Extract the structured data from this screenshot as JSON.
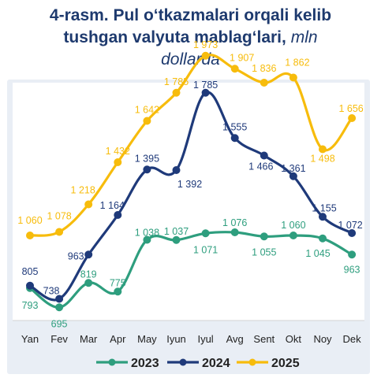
{
  "title": {
    "line1": "4-rasm. Pul o‘tkazmalari orqali kelib",
    "line2_bold": "tushgan valyuta mablag‘lari,",
    "line2_italic": "mln",
    "line3": "dollarda"
  },
  "chart_data": {
    "type": "line",
    "categories": [
      "Yan",
      "Fev",
      "Mar",
      "Apr",
      "May",
      "Iyun",
      "Iyul",
      "Avg",
      "Sent",
      "Okt",
      "Noy",
      "Dek"
    ],
    "series": [
      {
        "name": "2023",
        "color": "#2e9e7e",
        "values": [
          793,
          695,
          819,
          775,
          1038,
          1037,
          1071,
          1076,
          1055,
          1060,
          1045,
          963
        ],
        "labels": [
          "793",
          "695",
          "819",
          "775",
          "1 038",
          "1 037",
          "1 071",
          "1 076",
          "1 055",
          "1 060",
          "1 045",
          "963"
        ]
      },
      {
        "name": "2024",
        "color": "#1f3a7a",
        "values": [
          805,
          738,
          963,
          1164,
          1395,
          1392,
          1785,
          1555,
          1466,
          1361,
          1155,
          1072
        ],
        "labels": [
          "805",
          "738",
          "963",
          "1 164",
          "1 395",
          "1 392",
          "1 785",
          "1 555",
          "1 466",
          "1 361",
          "1 155",
          "1 072"
        ]
      },
      {
        "name": "2025",
        "color": "#f7bc0c",
        "values": [
          1060,
          1078,
          1218,
          1432,
          1642,
          1785,
          1973,
          1907,
          1836,
          1862,
          1498,
          1656
        ],
        "labels": [
          "1 060",
          "1 078",
          "1 218",
          "1 432",
          "1 642",
          "1 785",
          "1 973",
          "1 907",
          "1 836",
          "1 862",
          "1 498",
          "1 656"
        ]
      }
    ],
    "ylim": [
      600,
      2050
    ],
    "grid": false,
    "legend_position": "bottom"
  }
}
